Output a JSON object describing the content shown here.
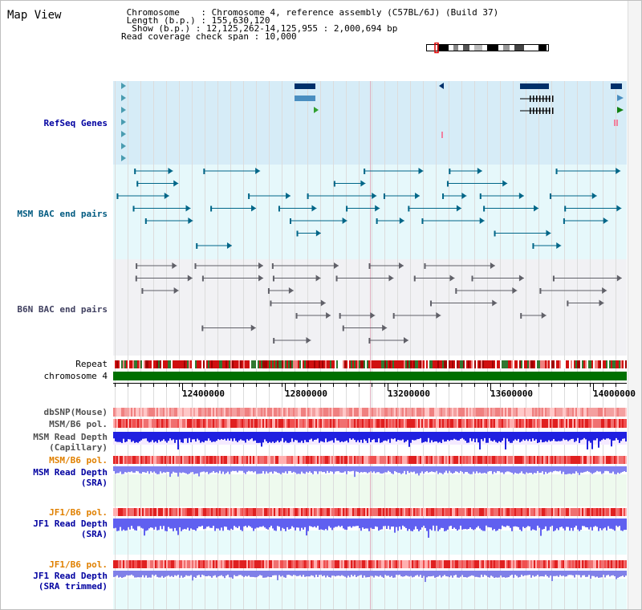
{
  "title": "Map View",
  "info": {
    "chromosome_label": "Chromosome",
    "chromosome_value": "Chromosome 4, reference assembly (C57BL/6J) (Build 37)",
    "length_label": "Length (b.p.)",
    "length_value": "155,630,120",
    "show_label": "Show (b.p.)",
    "show_value": "12,125,262-14,125,955 : 2,000,694 bp",
    "coverage_label": "Read coverage check span",
    "coverage_value": "10,000"
  },
  "tracks": {
    "refseq": "RefSeq Genes",
    "msm_bac": "MSM BAC end pairs",
    "b6n_bac": "B6N BAC end pairs",
    "repeat": "Repeat",
    "chromosome": "chromosome 4",
    "dbsnp": "dbSNP(Mouse)",
    "msm_b6_pol": "MSM/B6 pol.",
    "msm_depth_cap_1": "MSM Read Depth",
    "msm_depth_cap_2": "(Capillary)",
    "msm_b6_pol_2": "MSM/B6 pol.",
    "msm_depth_sra_1": "MSM Read Depth",
    "msm_depth_sra_2": "(SRA)",
    "jf1_b6_pol": "JF1/B6 pol.",
    "jf1_depth_sra_1": "JF1 Read Depth",
    "jf1_depth_sra_2": "(SRA)",
    "jf1_b6_pol_2": "JF1/B6 pol.",
    "jf1_depth_trim_1": "JF1 Read Depth",
    "jf1_depth_trim_2": "(SRA trimmed)"
  },
  "axis": {
    "ticks": [
      "12400000",
      "12800000",
      "13200000",
      "13600000",
      "14000000"
    ]
  },
  "colors": {
    "refseq_bg": "#d6ecf7",
    "msm_bg": "#e6f8fb",
    "b6n_bg": "#f1f1f4",
    "chromosome_bar": "#007000",
    "label_blue": "#0000a0",
    "label_orange": "#e08000",
    "depth_blue": "#2020e0",
    "depth_light": "#8080f0"
  }
}
